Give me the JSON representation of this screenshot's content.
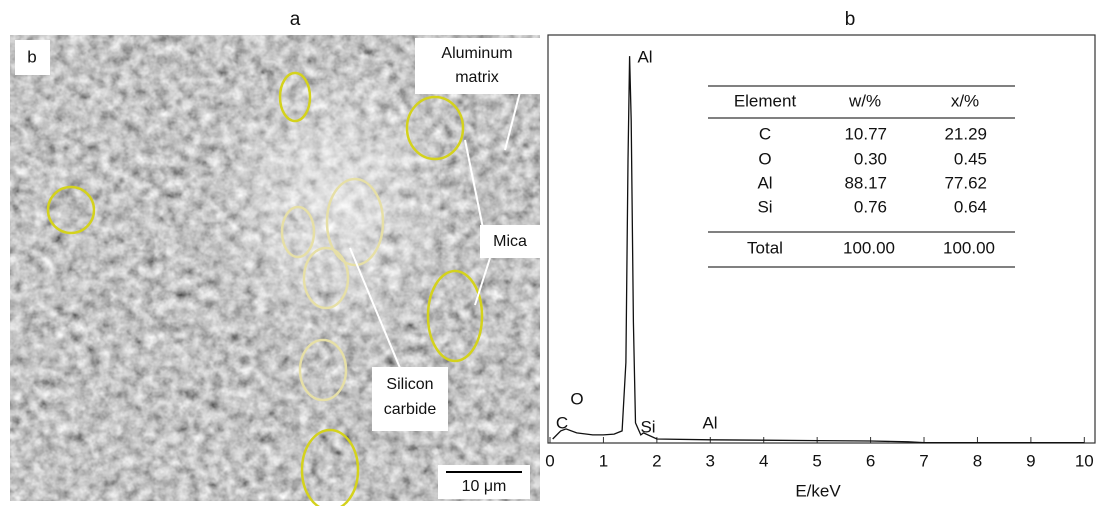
{
  "panel_a": {
    "title": "a",
    "corner_label": "b",
    "labels": [
      [
        "Aluminum",
        "matrix"
      ],
      [
        "Mica"
      ],
      [
        "Silicon",
        "carbide"
      ]
    ],
    "scale_bar": "10 μm"
  },
  "chart_data": {
    "type": "line",
    "title": "b",
    "x_label": "E/keV",
    "x": [
      0.05,
      0.2,
      0.3,
      0.5,
      0.8,
      1.0,
      1.2,
      1.35,
      1.42,
      1.46,
      1.49,
      1.52,
      1.56,
      1.6,
      1.7,
      1.75,
      2.0,
      3.0,
      4.0,
      5.0,
      6.0,
      6.7,
      7.0,
      10.0
    ],
    "values": [
      1,
      3,
      3.5,
      2.5,
      2,
      2,
      2.2,
      3,
      20,
      70,
      96,
      80,
      30,
      5,
      2,
      2.5,
      1,
      0.8,
      0.7,
      0.6,
      0.5,
      0.3,
      0.1,
      0.1
    ],
    "color": "#111111",
    "xlim": [
      0,
      10.2
    ],
    "ylim": [
      0,
      100
    ],
    "xticks": [
      0,
      1,
      2,
      3,
      4,
      5,
      6,
      7,
      8,
      9,
      10
    ],
    "annotations": [
      "Al",
      "C",
      "O",
      "Si",
      "Al"
    ]
  },
  "table": {
    "header": [
      "Element",
      "w/%",
      "x/%"
    ],
    "rows": [
      [
        "C",
        "10.77",
        "21.29"
      ],
      [
        "O",
        "0.30",
        "0.45"
      ],
      [
        "Al",
        "88.17",
        "77.62"
      ],
      [
        "Si",
        "0.76",
        "0.64"
      ]
    ],
    "total": [
      "Total",
      "100.00",
      "100.00"
    ]
  }
}
